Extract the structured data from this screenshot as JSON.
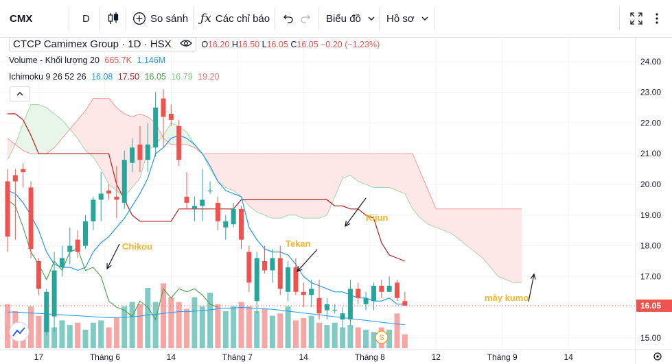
{
  "toolbar": {
    "symbol": "CMX",
    "interval": "D",
    "compare_label": "So sánh",
    "indicators_label": "Các chỉ báo",
    "chart_type_label": "Biểu đồ",
    "profile_label": "Hồ sơ"
  },
  "legend": {
    "name": "CTCP Camimex Group",
    "interval": "1D",
    "exchange": "HSX",
    "ohlc": {
      "o": "16.20",
      "h": "16.50",
      "l": "16.05",
      "c": "16.05",
      "change": "−0.20 (−1.23%)"
    },
    "o_label": "O",
    "h_label": "H",
    "l_label": "L",
    "c_label": "C",
    "volume_label": "Volume - Khối lượng 20",
    "volume_val": "665.7K",
    "volume_ma": "1.146M",
    "ichimoku_label": "Ichimoku 9 26 52 26",
    "ichimoku_vals": [
      "16.08",
      "17.50",
      "16.05",
      "16.79",
      "19.20"
    ]
  },
  "annotations": {
    "chikou": "Chikou",
    "tekan": "Tekan",
    "kijun": "Kijun",
    "kumo": "mây kumo"
  },
  "colors": {
    "up": "#26a69a",
    "down": "#ef5350",
    "up_vol": "#80cbc4",
    "down_vol": "#f6a6a4",
    "tenkan": "#2196f3",
    "kijun": "#b71c1c",
    "chikou": "#43a047",
    "span_a": "#a5d6a7",
    "span_b": "#ef9a9a",
    "cloud_bull": "#e8f5e9",
    "cloud_bear": "#fde7e7",
    "price_line": "#ef5350",
    "annotation": "#f5b526"
  },
  "chart_data": {
    "type": "candlestick",
    "symbol": "CMX",
    "last_price": "16.05",
    "y_ticks": [
      "24.00",
      "23.00",
      "22.00",
      "21.00",
      "20.00",
      "19.00",
      "18.00",
      "17.00",
      "16.00",
      "15.00"
    ],
    "ylim": [
      14.62,
      24.8
    ],
    "x_ticks": [
      "17",
      "Tháng 6",
      "14",
      "Tháng 7",
      "14",
      "Tháng 8",
      "12",
      "Tháng 9",
      "14"
    ],
    "x_tick_bars": [
      4,
      12.5,
      21,
      29.5,
      38,
      46.5,
      55,
      63.5,
      72
    ],
    "candles": [
      [
        20.1,
        20.5,
        17.8,
        18.3
      ],
      [
        20.3,
        20.5,
        18.2,
        20.1
      ],
      [
        20.5,
        20.7,
        19.9,
        20.4
      ],
      [
        19.9,
        20.1,
        17.6,
        17.9
      ],
      [
        17.5,
        17.6,
        16.4,
        16.6
      ],
      [
        15.2,
        16.6,
        15.1,
        16.5
      ],
      [
        15.7,
        17.8,
        15.2,
        17.2
      ],
      [
        17.3,
        18.0,
        17.0,
        17.6
      ],
      [
        17.8,
        18.6,
        17.4,
        18.0
      ],
      [
        18.2,
        18.5,
        17.6,
        17.8
      ],
      [
        18.0,
        19.0,
        17.9,
        18.8
      ],
      [
        18.8,
        19.6,
        18.5,
        19.5
      ],
      [
        19.5,
        20.4,
        18.8,
        19.7
      ],
      [
        19.8,
        20.0,
        19.5,
        19.7
      ],
      [
        19.6,
        20.6,
        18.9,
        19.5
      ],
      [
        19.4,
        21.1,
        19.2,
        20.8
      ],
      [
        20.7,
        21.5,
        20.4,
        21.2
      ],
      [
        21.3,
        21.9,
        20.4,
        20.8
      ],
      [
        20.8,
        22.0,
        20.4,
        21.3
      ],
      [
        21.2,
        23.0,
        20.9,
        22.5
      ],
      [
        22.8,
        23.1,
        21.2,
        22.2
      ],
      [
        22.3,
        22.6,
        21.9,
        22.1
      ],
      [
        21.9,
        22.1,
        20.6,
        20.8
      ],
      [
        19.6,
        20.4,
        19.2,
        19.4
      ],
      [
        19.2,
        19.6,
        18.8,
        19.3
      ],
      [
        19.3,
        20.5,
        18.8,
        19.5
      ],
      [
        19.8,
        20.1,
        19.7,
        19.8
      ],
      [
        19.4,
        19.6,
        18.5,
        18.8
      ],
      [
        18.6,
        19.0,
        18.2,
        18.8
      ],
      [
        18.7,
        19.4,
        18.6,
        19.2
      ],
      [
        19.2,
        19.3,
        17.9,
        18.2
      ],
      [
        17.8,
        18.0,
        16.5,
        16.8
      ],
      [
        16.2,
        17.8,
        15.8,
        17.6
      ],
      [
        17.5,
        18.0,
        17.1,
        17.2
      ],
      [
        17.2,
        17.9,
        16.8,
        17.6
      ],
      [
        17.6,
        18.0,
        16.4,
        16.6
      ],
      [
        16.5,
        17.5,
        16.2,
        17.3
      ],
      [
        17.3,
        17.6,
        16.4,
        16.5
      ],
      [
        16.5,
        16.8,
        16.0,
        16.4
      ],
      [
        16.4,
        16.9,
        16.0,
        16.6
      ],
      [
        16.3,
        16.9,
        15.6,
        15.8
      ],
      [
        15.9,
        16.3,
        15.6,
        16.1
      ],
      [
        15.9,
        16.1,
        15.8,
        15.9
      ],
      [
        15.6,
        16.0,
        15.3,
        15.8
      ],
      [
        15.6,
        16.9,
        15.4,
        16.6
      ],
      [
        16.6,
        16.8,
        16.1,
        16.3
      ],
      [
        16.1,
        16.5,
        15.9,
        16.3
      ],
      [
        16.2,
        16.8,
        15.9,
        16.7
      ],
      [
        16.7,
        16.9,
        16.3,
        16.5
      ],
      [
        16.5,
        17.0,
        16.5,
        16.7
      ],
      [
        16.8,
        16.9,
        16.2,
        16.3
      ],
      [
        16.2,
        16.5,
        16.05,
        16.05
      ]
    ],
    "volume": [
      0.95,
      0.8,
      0.5,
      0.9,
      0.7,
      0.75,
      0.45,
      0.6,
      0.5,
      0.55,
      0.4,
      0.55,
      0.6,
      0.45,
      0.65,
      0.9,
      1.0,
      0.95,
      1.3,
      1.0,
      1.4,
      1.1,
      1.0,
      0.85,
      1.1,
      0.9,
      1.2,
      0.95,
      0.8,
      0.9,
      1.0,
      0.9,
      0.8,
      0.85,
      0.7,
      0.75,
      0.9,
      0.6,
      0.65,
      0.7,
      0.55,
      0.5,
      0.55,
      0.45,
      0.5,
      0.45,
      0.4,
      0.35,
      0.45,
      0.4,
      0.75,
      0.3
    ],
    "volume_scale_max": 1.7,
    "volume_ma_values": [
      0.78,
      0.78,
      0.77,
      0.76,
      0.75,
      0.74,
      0.73,
      0.72,
      0.71,
      0.7,
      0.69,
      0.68,
      0.67,
      0.66,
      0.66,
      0.67,
      0.68,
      0.69,
      0.72,
      0.73,
      0.75,
      0.77,
      0.79,
      0.79,
      0.8,
      0.81,
      0.83,
      0.85,
      0.86,
      0.87,
      0.88,
      0.87,
      0.86,
      0.85,
      0.84,
      0.82,
      0.8,
      0.78,
      0.76,
      0.74,
      0.72,
      0.7,
      0.68,
      0.66,
      0.64,
      0.62,
      0.6,
      0.58,
      0.56,
      0.54,
      0.52,
      0.51
    ],
    "tenkan_sen": [
      19.8,
      19.7,
      19.4,
      19.0,
      18.5,
      17.8,
      17.4,
      17.3,
      17.3,
      17.2,
      17.3,
      17.8,
      18.1,
      18.3,
      18.6,
      18.9,
      19.3,
      19.7,
      20.2,
      21.0,
      21.2,
      21.5,
      21.6,
      21.5,
      21.3,
      21.0,
      20.6,
      20.1,
      19.8,
      19.7,
      19.6,
      18.6,
      18.2,
      17.9,
      17.8,
      17.8,
      17.7,
      17.4,
      17.0,
      16.8,
      16.7,
      16.6,
      16.5,
      16.5,
      16.4,
      16.3,
      16.3,
      16.2,
      16.2,
      16.3,
      16.1,
      16.1
    ],
    "kijun_sen": [
      22.3,
      22.3,
      22.1,
      21.6,
      21.0,
      21.0,
      21.0,
      21.0,
      21.0,
      21.0,
      21.0,
      21.0,
      21.0,
      21.0,
      20.0,
      19.5,
      19.0,
      18.8,
      18.8,
      18.8,
      18.8,
      18.8,
      19.2,
      19.2,
      19.2,
      19.2,
      19.2,
      19.2,
      19.2,
      19.2,
      19.5,
      19.5,
      19.5,
      19.5,
      19.5,
      19.5,
      19.5,
      19.5,
      19.5,
      19.5,
      19.5,
      19.5,
      19.3,
      19.3,
      19.2,
      19.2,
      19.0,
      18.9,
      18.1,
      17.7,
      17.6,
      17.5
    ],
    "chikou_span": [
      19.5,
      19.3,
      18.6,
      17.8,
      17.4,
      16.9,
      17.5,
      17.2,
      17.8,
      17.9,
      17.2,
      17.3,
      17.0,
      16.2,
      16.0,
      15.9,
      15.7,
      16.2,
      16.0,
      15.6,
      16.6,
      16.3,
      16.6,
      16.5,
      16.6,
      16.4,
      16.1,
      16.0
    ],
    "senkou_span_a": [
      20.8,
      21.3,
      22.0,
      22.6,
      22.6,
      22.5,
      22.3,
      22.1,
      21.8,
      21.5,
      21.1,
      20.9,
      20.5,
      20.0,
      19.8,
      19.6,
      19.9,
      20.2,
      21.1,
      21.3,
      21.6,
      22.0,
      21.9,
      21.7,
      21.3,
      21.0,
      20.5,
      20.1,
      19.9,
      19.8,
      19.6,
      19.3,
      19.1,
      19.0,
      18.9,
      18.9,
      19.0,
      19.0,
      18.9,
      18.9,
      18.9,
      19.0,
      19.6,
      20.2,
      20.3,
      20.1,
      20.0,
      19.9,
      19.9,
      19.9,
      19.8,
      19.7,
      19.2,
      18.9,
      18.7,
      18.6,
      18.5,
      18.4,
      18.2,
      18.0,
      17.8,
      17.6,
      17.3,
      17.0,
      16.9,
      16.8,
      16.8
    ],
    "senkou_span_b": [
      21.5,
      21.3,
      21.1,
      21.0,
      21.0,
      21.0,
      21.2,
      21.5,
      21.8,
      22.1,
      22.4,
      22.8,
      22.8,
      22.8,
      22.5,
      22.3,
      22.2,
      22.3,
      22.2,
      22.0,
      21.5,
      21.3,
      21.3,
      21.3,
      21.2,
      21.0,
      21.0,
      21.0,
      21.0,
      21.0,
      21.0,
      21.0,
      21.0,
      21.0,
      21.0,
      21.0,
      21.0,
      21.0,
      21.0,
      21.0,
      21.0,
      21.0,
      21.0,
      21.0,
      21.0,
      21.0,
      21.0,
      21.0,
      21.0,
      21.0,
      21.0,
      21.0,
      21.0,
      20.4,
      19.8,
      19.2,
      19.2,
      19.2,
      19.2,
      19.2,
      19.2,
      19.2,
      19.2,
      19.2,
      19.2,
      19.2,
      19.2
    ]
  }
}
